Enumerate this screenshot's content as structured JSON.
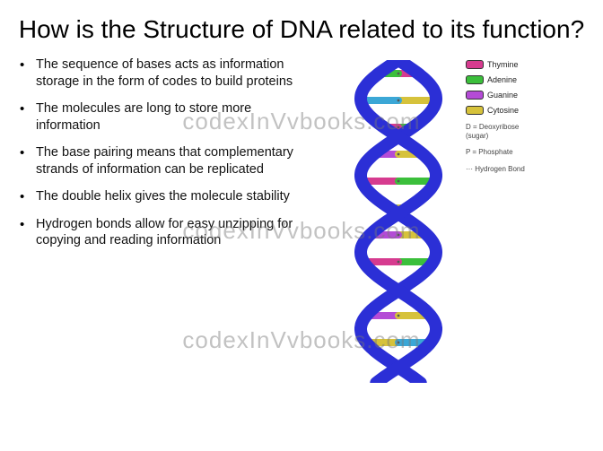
{
  "slide": {
    "title": "How is the Structure of DNA related to its function?",
    "title_fontsize": 28,
    "title_color": "#000000",
    "background": "#ffffff",
    "bullets": [
      "The sequence of bases acts as information storage in the form of codes to build proteins",
      "The molecules are long to store more information",
      "The base pairing means that complementary strands of information can be replicated",
      "The double helix gives the molecule stability",
      "Hydrogen bonds allow for easy unzipping for copying and reading information"
    ],
    "bullet_fontsize": 14.5,
    "bullet_color": "#111111"
  },
  "helix": {
    "backbone_color": "#2b2fd6",
    "strand_width": 14,
    "rungs": [
      {
        "left": "#d63b8f",
        "right": "#3bbf3b"
      },
      {
        "left": "#d6c23b",
        "right": "#3ba7d6"
      },
      {
        "left": "#3bbf3b",
        "right": "#d63b8f"
      },
      {
        "left": "#b44bd6",
        "right": "#d6c23b"
      },
      {
        "left": "#d63b8f",
        "right": "#3bbf3b"
      },
      {
        "left": "#3ba7d6",
        "right": "#d6c23b"
      },
      {
        "left": "#d6c23b",
        "right": "#b44bd6"
      },
      {
        "left": "#3bbf3b",
        "right": "#d63b8f"
      },
      {
        "left": "#d63b8f",
        "right": "#3bbf3b"
      },
      {
        "left": "#b44bd6",
        "right": "#d6c23b"
      },
      {
        "left": "#d6c23b",
        "right": "#3ba7d6"
      },
      {
        "left": "#3bbf3b",
        "right": "#d63b8f"
      }
    ],
    "crossover_points": [
      0.08,
      0.42,
      0.76
    ]
  },
  "legend": {
    "items": [
      {
        "color": "#d63b8f",
        "label": "Thymine"
      },
      {
        "color": "#3bbf3b",
        "label": "Adenine"
      },
      {
        "color": "#b44bd6",
        "label": "Guanine"
      },
      {
        "color": "#d6c23b",
        "label": "Cytosine"
      }
    ],
    "notes": [
      "D = Deoxyribose (sugar)",
      "P = Phosphate",
      "··· Hydrogen Bond"
    ],
    "fontsize": 9
  },
  "watermark": {
    "text": "codexInVvbooks.com",
    "color": "rgba(120,120,120,0.45)",
    "fontsize": 26,
    "positions": [
      120,
      242,
      364
    ]
  }
}
